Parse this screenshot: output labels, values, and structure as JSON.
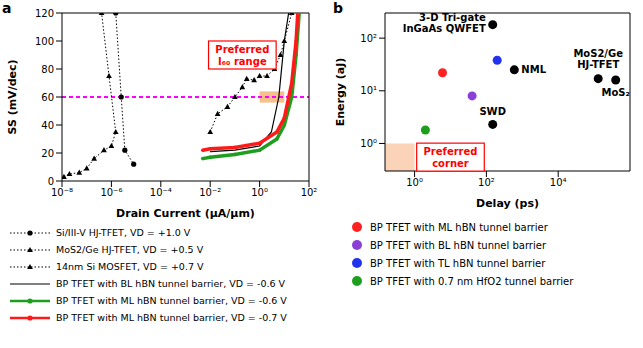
{
  "chart_data": [
    {
      "panel_label": "a",
      "type": "line",
      "x_label": "Drain Current (μA/μm)",
      "y_label": "SS (mV/dec)",
      "log": "x",
      "xlim": [
        1e-08,
        100
      ],
      "xticks": [
        {
          "value": 1e-08,
          "label": "10⁻⁸"
        },
        {
          "value": 1e-06,
          "label": "10⁻⁶"
        },
        {
          "value": 0.0001,
          "label": "10⁻⁴"
        },
        {
          "value": 0.01,
          "label": "10⁻²"
        },
        {
          "value": 1,
          "label": "10⁰"
        },
        {
          "value": 100,
          "label": "10²"
        }
      ],
      "ylim": [
        0,
        120
      ],
      "yticks": [
        0,
        20,
        40,
        60,
        80,
        100,
        120
      ],
      "reference_line": {
        "y": 60,
        "color": "#ff00ff",
        "line_style": "dashed"
      },
      "highlight": {
        "x": [
          1,
          10
        ],
        "y": [
          56,
          64
        ],
        "color": "#f6c08c"
      },
      "annotations": [
        {
          "text": "Preferred I₆₀ range",
          "x": 0.2,
          "y": 90,
          "color": "#ff0000"
        }
      ],
      "series": [
        {
          "name": "Si/III-V HJ-TFET, VD = +1.0 V",
          "color": "#000000",
          "line_style": "dotted",
          "marker": "circle",
          "x": [
            1.5e-06,
            2.5e-06,
            3.5e-06,
            8e-06
          ],
          "values": [
            120,
            60,
            22,
            12
          ]
        },
        {
          "name": "MoS2/Ge HJ-TFET, VD = +0.5 V",
          "color": "#000000",
          "line_style": "dotted",
          "marker": "triangle",
          "x": [
            1.2e-08,
            2e-08,
            5e-08,
            1e-07,
            2e-07,
            5e-07,
            1e-06,
            1.5e-06,
            8e-07,
            4e-07
          ],
          "values": [
            3,
            5,
            6,
            9,
            16,
            22,
            25,
            35,
            75,
            120
          ]
        },
        {
          "name": "14nm Si MOSFET, VD = +0.7 V",
          "color": "#000000",
          "line_style": "dotted",
          "marker": "triangle",
          "x": [
            0.01,
            0.02,
            0.05,
            0.1,
            0.2,
            0.3,
            0.6,
            1,
            2,
            4,
            7,
            10,
            20
          ],
          "values": [
            35,
            48,
            53,
            60,
            67,
            73,
            72,
            75,
            75,
            80,
            90,
            100,
            120
          ]
        },
        {
          "name": "BP TFET with BL hBN tunnel barrier, VD = -0.6 V",
          "color": "#000000",
          "line_style": "solid",
          "marker": "none",
          "x": [
            0.01,
            0.1,
            1,
            3,
            6,
            10,
            15
          ],
          "values": [
            21,
            22,
            25,
            35,
            60,
            100,
            120
          ]
        },
        {
          "name": "BP TFET with ML hBN tunnel barrier, VD = -0.6 V",
          "color": "#1e9e1e",
          "line_style": "solid",
          "marker": "circle",
          "x": [
            0.005,
            0.01,
            0.1,
            1,
            5,
            10,
            20,
            30,
            40
          ],
          "values": [
            16,
            17,
            19,
            22,
            30,
            40,
            60,
            90,
            120
          ]
        },
        {
          "name": "BP TFET with ML hBN tunnel barrier, VD = -0.7 V",
          "color": "#ff1a1a",
          "line_style": "solid",
          "marker": "circle",
          "x": [
            0.005,
            0.01,
            0.1,
            1,
            5,
            10,
            20,
            30,
            35
          ],
          "values": [
            22,
            23,
            24,
            27,
            35,
            45,
            70,
            100,
            120
          ]
        }
      ]
    },
    {
      "panel_label": "b",
      "type": "scatter",
      "x_label": "Delay (ps)",
      "y_label": "Energy (aJ)",
      "log": true,
      "xlim": [
        0.15,
        1000000
      ],
      "xticks": [
        {
          "value": 1,
          "label": "10⁰"
        },
        {
          "value": 100,
          "label": "10²"
        },
        {
          "value": 10000,
          "label": "10⁴"
        }
      ],
      "ylim": [
        0.3,
        300
      ],
      "yticks": [
        {
          "value": 1,
          "label": "10⁰"
        },
        {
          "value": 10,
          "label": "10¹"
        },
        {
          "value": 100,
          "label": "10²"
        }
      ],
      "highlight": {
        "x": [
          0.15,
          1
        ],
        "y": [
          0.3,
          1
        ],
        "color": "#fbd3b8"
      },
      "annotations": [
        {
          "text": "Preferred corner",
          "x": 10,
          "y": 0.55,
          "color": "#ff0000"
        }
      ],
      "points": [
        {
          "label": "3-D Tri-gate InGaAs QWFET",
          "x": 150,
          "y": 180,
          "color": "#000000"
        },
        {
          "label": "NML",
          "x": 600,
          "y": 25,
          "color": "#000000"
        },
        {
          "label": "MoS2/Ge HJ-TFET",
          "x": 130000,
          "y": 17,
          "color": "#000000"
        },
        {
          "label": "MoS₂",
          "x": 400000,
          "y": 16,
          "color": "#000000"
        },
        {
          "label": "SWD",
          "x": 150,
          "y": 2.3,
          "color": "#000000"
        }
      ],
      "series": [
        {
          "name": "BP TFET with ML hBN tunnel barrier",
          "color": "#ff2020",
          "marker": "circle",
          "x": [
            6
          ],
          "values": [
            22
          ]
        },
        {
          "name": "BP TFET with BL hBN tunnel barrier",
          "color": "#8a3fd6",
          "marker": "circle",
          "x": [
            40
          ],
          "values": [
            8
          ]
        },
        {
          "name": "BP TFET with TL hBN tunnel barrier",
          "color": "#2233ee",
          "marker": "circle",
          "x": [
            200
          ],
          "values": [
            38
          ]
        },
        {
          "name": "BP TFET with 0.7 nm HfO2 tunnel barrier",
          "color": "#1e9e1e",
          "marker": "circle",
          "x": [
            2
          ],
          "values": [
            1.8
          ]
        }
      ]
    }
  ]
}
